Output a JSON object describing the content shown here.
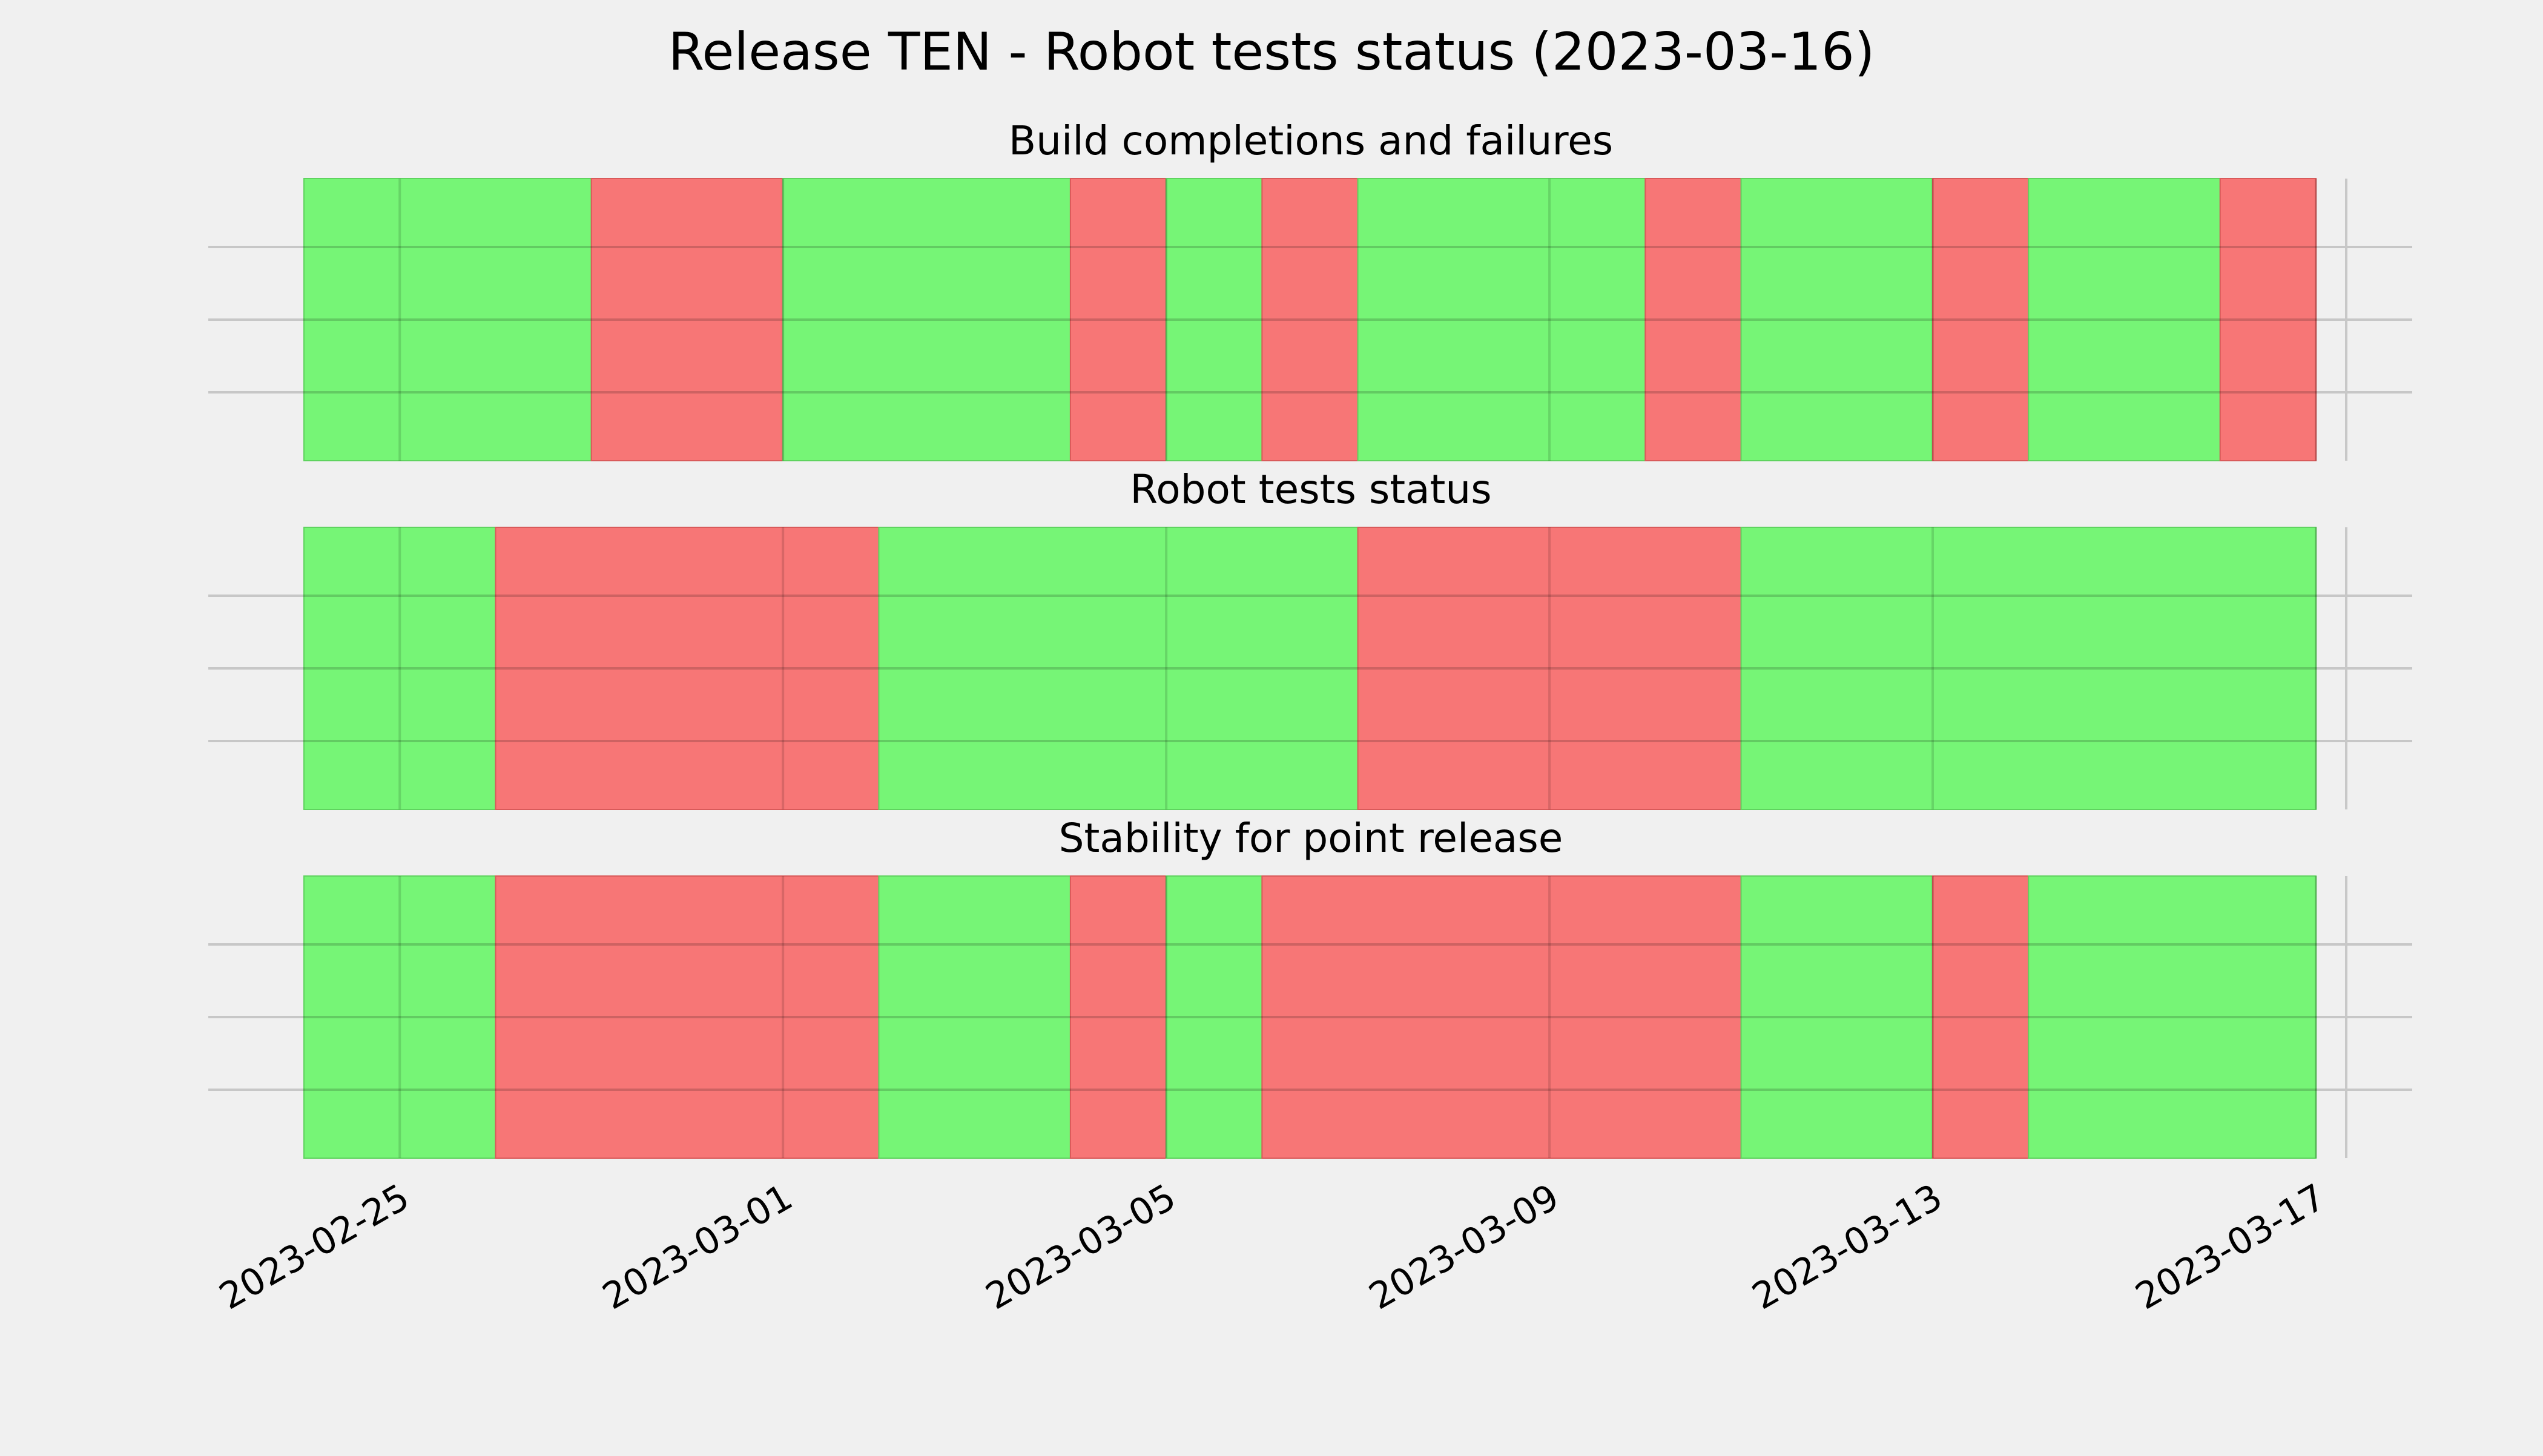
{
  "chart_data": {
    "type": "timeline",
    "title": "Release TEN - Robot tests status (2023-03-16)",
    "xlim": [
      "2023-02-24",
      "2023-03-17"
    ],
    "x_ticks": [
      "2023-02-25",
      "2023-03-01",
      "2023-03-05",
      "2023-03-09",
      "2023-03-13",
      "2023-03-17"
    ],
    "status_colors": {
      "pass": "#76f576",
      "fail": "#f77676"
    },
    "grid": true,
    "panels": [
      {
        "title": "Build completions and failures",
        "segments": [
          {
            "start": "2023-02-24",
            "end": "2023-02-27",
            "status": "pass"
          },
          {
            "start": "2023-02-27",
            "end": "2023-03-01",
            "status": "fail"
          },
          {
            "start": "2023-03-01",
            "end": "2023-03-04",
            "status": "pass"
          },
          {
            "start": "2023-03-04",
            "end": "2023-03-05",
            "status": "fail"
          },
          {
            "start": "2023-03-05",
            "end": "2023-03-06",
            "status": "pass"
          },
          {
            "start": "2023-03-06",
            "end": "2023-03-07",
            "status": "fail"
          },
          {
            "start": "2023-03-07",
            "end": "2023-03-10",
            "status": "pass"
          },
          {
            "start": "2023-03-10",
            "end": "2023-03-11",
            "status": "fail"
          },
          {
            "start": "2023-03-11",
            "end": "2023-03-13",
            "status": "pass"
          },
          {
            "start": "2023-03-13",
            "end": "2023-03-14",
            "status": "fail"
          },
          {
            "start": "2023-03-14",
            "end": "2023-03-16",
            "status": "pass"
          },
          {
            "start": "2023-03-16",
            "end": "2023-03-17",
            "status": "fail"
          }
        ]
      },
      {
        "title": "Robot tests status",
        "segments": [
          {
            "start": "2023-02-24",
            "end": "2023-02-26",
            "status": "pass"
          },
          {
            "start": "2023-02-26",
            "end": "2023-03-02",
            "status": "fail"
          },
          {
            "start": "2023-03-02",
            "end": "2023-03-07",
            "status": "pass"
          },
          {
            "start": "2023-03-07",
            "end": "2023-03-11",
            "status": "fail"
          },
          {
            "start": "2023-03-11",
            "end": "2023-03-17",
            "status": "pass"
          }
        ]
      },
      {
        "title": "Stability for point release",
        "segments": [
          {
            "start": "2023-02-24",
            "end": "2023-02-26",
            "status": "pass"
          },
          {
            "start": "2023-02-26",
            "end": "2023-03-02",
            "status": "fail"
          },
          {
            "start": "2023-03-02",
            "end": "2023-03-04",
            "status": "pass"
          },
          {
            "start": "2023-03-04",
            "end": "2023-03-05",
            "status": "fail"
          },
          {
            "start": "2023-03-05",
            "end": "2023-03-06",
            "status": "pass"
          },
          {
            "start": "2023-03-06",
            "end": "2023-03-11",
            "status": "fail"
          },
          {
            "start": "2023-03-11",
            "end": "2023-03-13",
            "status": "pass"
          },
          {
            "start": "2023-03-13",
            "end": "2023-03-14",
            "status": "fail"
          },
          {
            "start": "2023-03-14",
            "end": "2023-03-17",
            "status": "pass"
          }
        ]
      }
    ]
  }
}
